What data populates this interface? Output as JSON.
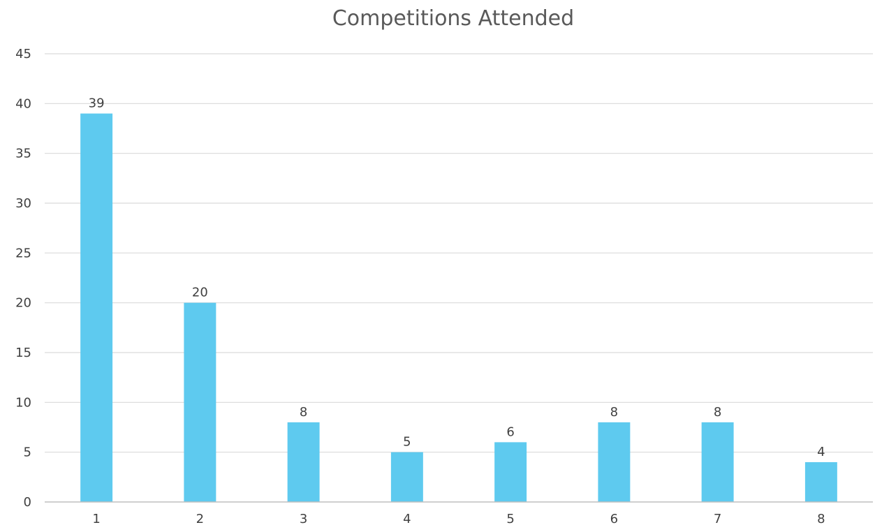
{
  "chart_data": {
    "type": "bar",
    "title": "Competitions Attended",
    "xlabel": "",
    "ylabel": "",
    "categories": [
      "1",
      "2",
      "3",
      "4",
      "5",
      "6",
      "7",
      "8"
    ],
    "values": [
      39,
      20,
      8,
      5,
      6,
      8,
      8,
      4
    ],
    "ylim": [
      0,
      45
    ],
    "yticks": [
      0,
      5,
      10,
      15,
      20,
      25,
      30,
      35,
      40,
      45
    ],
    "grid": true,
    "legend": "none",
    "bar_color": "#5ECAEF",
    "data_labels": true
  }
}
